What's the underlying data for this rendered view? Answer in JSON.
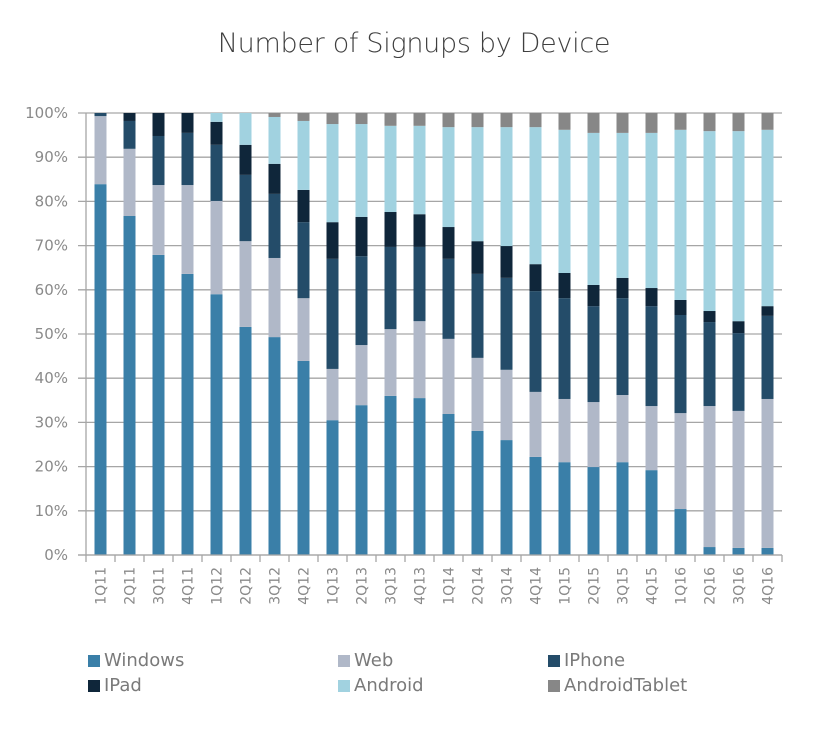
{
  "chart_data": {
    "type": "bar",
    "stacked": true,
    "percent": true,
    "title": "Number of Signups by Device",
    "xlabel": "",
    "ylabel": "",
    "ylim": [
      0,
      100
    ],
    "yticks": [
      "0%",
      "10%",
      "20%",
      "30%",
      "40%",
      "50%",
      "60%",
      "70%",
      "80%",
      "90%",
      "100%"
    ],
    "grid": true,
    "legend_position": "bottom",
    "categories": [
      "1Q11",
      "2Q11",
      "3Q11",
      "4Q11",
      "1Q12",
      "2Q12",
      "3Q12",
      "4Q12",
      "1Q13",
      "2Q13",
      "3Q13",
      "4Q13",
      "1Q14",
      "2Q14",
      "3Q14",
      "4Q14",
      "1Q15",
      "2Q15",
      "3Q15",
      "4Q15",
      "1Q16",
      "2Q16",
      "3Q16",
      "4Q16"
    ],
    "series": [
      {
        "name": "Windows",
        "color": "#3a7fa8",
        "values": [
          83.9,
          76.7,
          67.9,
          63.6,
          59.0,
          51.6,
          49.3,
          43.9,
          30.5,
          33.9,
          36.0,
          35.5,
          31.9,
          28.1,
          26.0,
          22.2,
          21.0,
          19.9,
          21.0,
          19.2,
          10.4,
          1.8,
          1.6,
          1.6
        ]
      },
      {
        "name": "Web",
        "color": "#b0b8c8",
        "values": [
          15.4,
          15.2,
          15.8,
          20.1,
          21.1,
          19.4,
          17.9,
          14.2,
          11.6,
          13.6,
          15.1,
          17.4,
          17.0,
          16.5,
          15.9,
          14.7,
          14.3,
          14.7,
          15.2,
          14.5,
          21.7,
          31.9,
          31.0,
          33.7
        ]
      },
      {
        "name": "IPhone",
        "color": "#244c69",
        "values": [
          0.7,
          6.3,
          11.1,
          11.8,
          12.7,
          15.0,
          14.5,
          17.2,
          24.9,
          20.1,
          18.6,
          16.8,
          18.1,
          19.0,
          20.8,
          22.8,
          22.8,
          21.7,
          21.9,
          22.6,
          22.2,
          19.0,
          17.6,
          18.8
        ]
      },
      {
        "name": "IPad",
        "color": "#0f263a",
        "values": [
          0,
          1.8,
          5.2,
          4.5,
          5.2,
          6.8,
          6.8,
          7.3,
          8.3,
          8.9,
          7.9,
          7.4,
          7.2,
          7.4,
          7.2,
          6.1,
          5.7,
          4.8,
          4.6,
          4.1,
          3.4,
          2.5,
          2.7,
          2.2
        ]
      },
      {
        "name": "Android",
        "color": "#a1d2e0",
        "values": [
          0,
          0,
          0,
          0,
          2.0,
          7.2,
          10.6,
          15.6,
          22.2,
          21.0,
          19.5,
          20.0,
          22.6,
          25.8,
          26.9,
          31.0,
          32.4,
          34.4,
          32.8,
          35.1,
          38.5,
          40.7,
          43.0,
          39.9
        ]
      },
      {
        "name": "AndroidTablet",
        "color": "#878787",
        "values": [
          0,
          0,
          0,
          0,
          0,
          0,
          0.9,
          1.8,
          2.5,
          2.5,
          2.9,
          2.9,
          3.2,
          3.2,
          3.2,
          3.2,
          3.8,
          4.5,
          4.5,
          4.5,
          3.8,
          4.1,
          4.1,
          3.8
        ]
      }
    ]
  }
}
